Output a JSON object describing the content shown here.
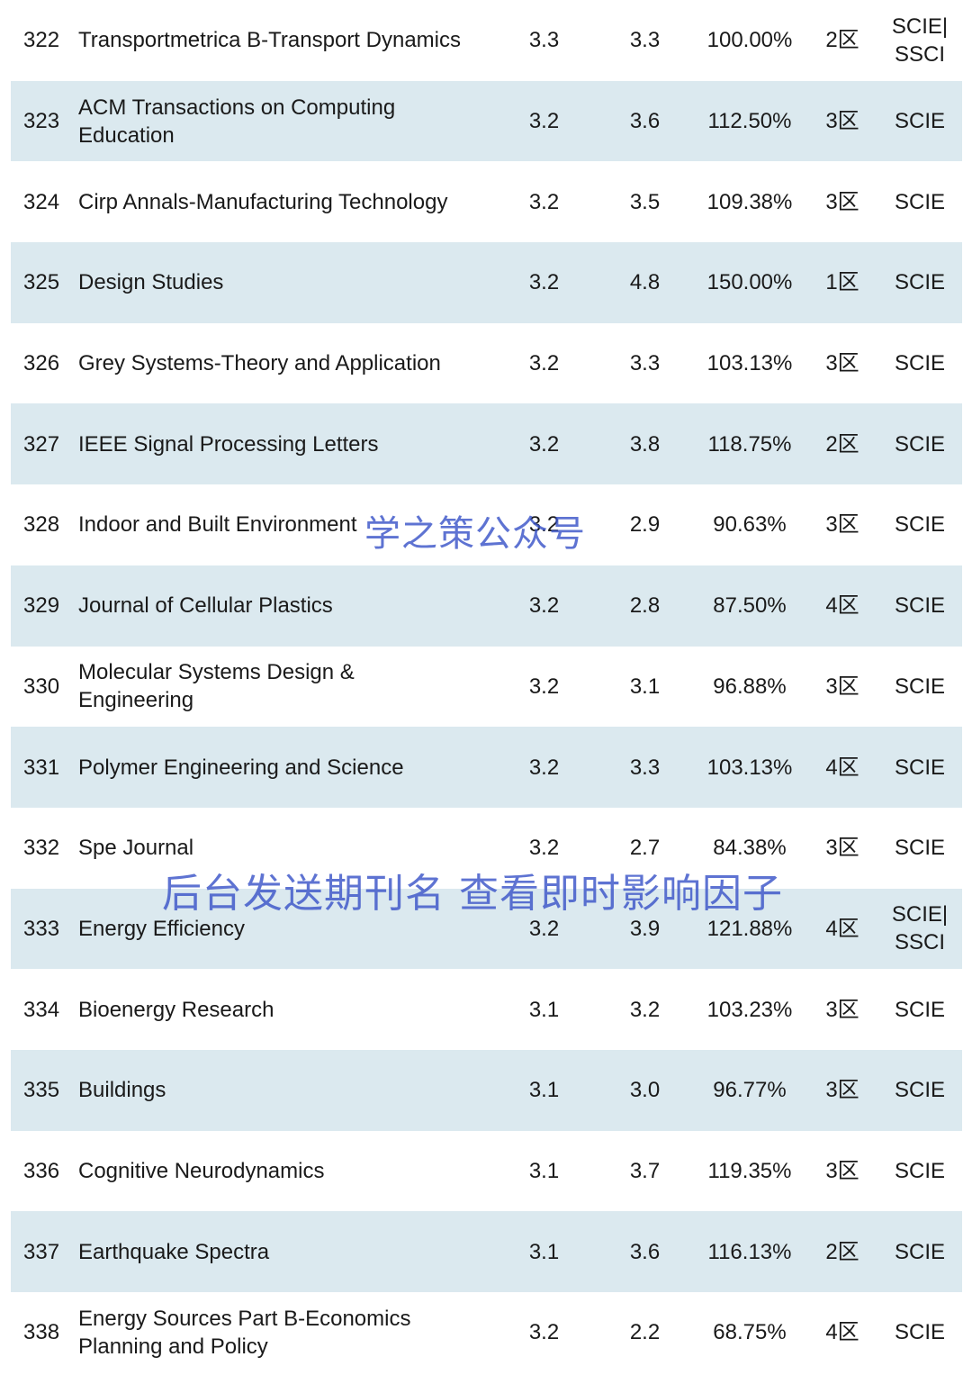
{
  "rows": [
    {
      "no": "322",
      "name": "Transportmetrica B-Transport Dynamics",
      "if": "3.3",
      "pred": "3.3",
      "pct": "100.00%",
      "zone": "2区",
      "index": "SCIE|\nSSCI"
    },
    {
      "no": "323",
      "name": "ACM Transactions on Computing\nEducation",
      "if": "3.2",
      "pred": "3.6",
      "pct": "112.50%",
      "zone": "3区",
      "index": "SCIE"
    },
    {
      "no": "324",
      "name": "Cirp Annals-Manufacturing Technology",
      "if": "3.2",
      "pred": "3.5",
      "pct": "109.38%",
      "zone": "3区",
      "index": "SCIE"
    },
    {
      "no": "325",
      "name": "Design Studies",
      "if": "3.2",
      "pred": "4.8",
      "pct": "150.00%",
      "zone": "1区",
      "index": "SCIE"
    },
    {
      "no": "326",
      "name": "Grey Systems-Theory and Application",
      "if": "3.2",
      "pred": "3.3",
      "pct": "103.13%",
      "zone": "3区",
      "index": "SCIE"
    },
    {
      "no": "327",
      "name": "IEEE Signal Processing Letters",
      "if": "3.2",
      "pred": "3.8",
      "pct": "118.75%",
      "zone": "2区",
      "index": "SCIE"
    },
    {
      "no": "328",
      "name": "Indoor and Built Environment",
      "if": "3.2",
      "pred": "2.9",
      "pct": "90.63%",
      "zone": "3区",
      "index": "SCIE"
    },
    {
      "no": "329",
      "name": "Journal of Cellular Plastics",
      "if": "3.2",
      "pred": "2.8",
      "pct": "87.50%",
      "zone": "4区",
      "index": "SCIE"
    },
    {
      "no": "330",
      "name": "Molecular Systems Design &\nEngineering",
      "if": "3.2",
      "pred": "3.1",
      "pct": "96.88%",
      "zone": "3区",
      "index": "SCIE"
    },
    {
      "no": "331",
      "name": "Polymer Engineering and Science",
      "if": "3.2",
      "pred": "3.3",
      "pct": "103.13%",
      "zone": "4区",
      "index": "SCIE"
    },
    {
      "no": "332",
      "name": "Spe Journal",
      "if": "3.2",
      "pred": "2.7",
      "pct": "84.38%",
      "zone": "3区",
      "index": "SCIE"
    },
    {
      "no": "333",
      "name": "Energy Efficiency",
      "if": "3.2",
      "pred": "3.9",
      "pct": "121.88%",
      "zone": "4区",
      "index": "SCIE|\nSSCI"
    },
    {
      "no": "334",
      "name": "Bioenergy Research",
      "if": "3.1",
      "pred": "3.2",
      "pct": "103.23%",
      "zone": "3区",
      "index": "SCIE"
    },
    {
      "no": "335",
      "name": "Buildings",
      "if": "3.1",
      "pred": "3.0",
      "pct": "96.77%",
      "zone": "3区",
      "index": "SCIE"
    },
    {
      "no": "336",
      "name": "Cognitive Neurodynamics",
      "if": "3.1",
      "pred": "3.7",
      "pct": "119.35%",
      "zone": "3区",
      "index": "SCIE"
    },
    {
      "no": "337",
      "name": "Earthquake Spectra",
      "if": "3.1",
      "pred": "3.6",
      "pct": "116.13%",
      "zone": "2区",
      "index": "SCIE"
    },
    {
      "no": "338",
      "name": "Energy Sources Part B-Economics\nPlanning and Policy",
      "if": "3.2",
      "pred": "2.2",
      "pct": "68.75%",
      "zone": "4区",
      "index": "SCIE"
    }
  ],
  "watermark1": "学之策公众号",
  "watermark2": "后台发送期刊名 查看即时影响因子",
  "colors": {
    "row_shade": "#dbe9ef",
    "watermark": "#3a54c8"
  }
}
